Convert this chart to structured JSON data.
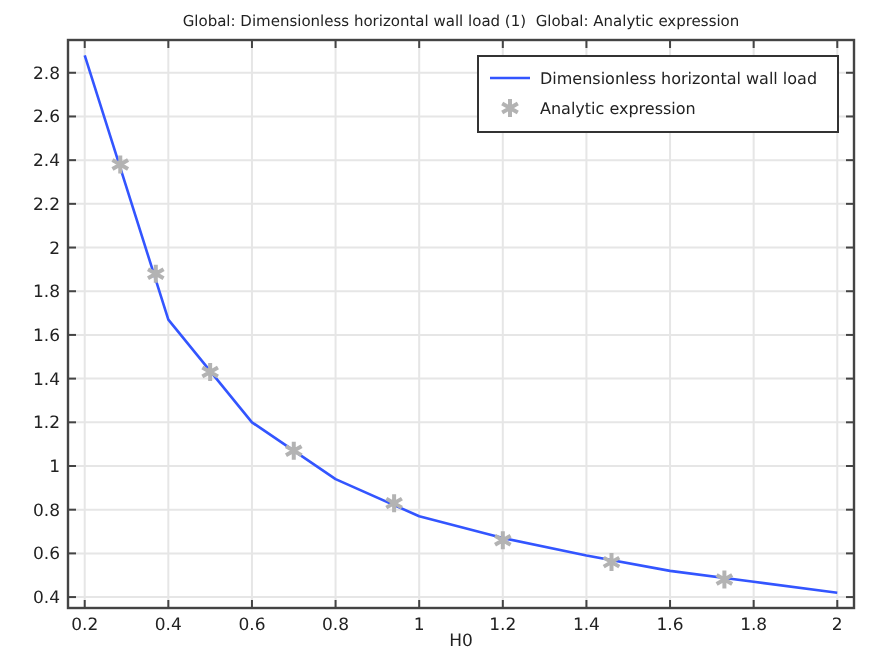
{
  "chart_data": {
    "type": "line",
    "title": "Global: Dimensionless horizontal wall load (1)  Global: Analytic expression",
    "xlabel": "H0",
    "xlim": [
      0.16,
      2.04
    ],
    "ylim": [
      0.35,
      2.95
    ],
    "xticks": [
      0.2,
      0.4,
      0.6,
      0.8,
      1,
      1.2,
      1.4,
      1.6,
      1.8,
      2
    ],
    "yticks": [
      0.4,
      0.6,
      0.8,
      1,
      1.2,
      1.4,
      1.6,
      1.8,
      2,
      2.2,
      2.4,
      2.6,
      2.8
    ],
    "grid": true,
    "legend": "top right",
    "series": [
      {
        "name": "Dimensionless horizontal wall load",
        "color": "#3355ff",
        "marker": "none",
        "x": [
          0.2,
          0.4,
          0.6,
          0.8,
          1,
          1.2,
          1.4,
          1.6,
          1.8,
          2
        ],
        "values": [
          2.88,
          1.67,
          1.2,
          0.94,
          0.77,
          0.67,
          0.59,
          0.52,
          0.47,
          0.42
        ]
      },
      {
        "name": "Analytic expression",
        "type": "scatter",
        "color": "#b3b3b3",
        "marker": "cross",
        "x": [
          0.285,
          0.37,
          0.5,
          0.7,
          0.94,
          1.2,
          1.46,
          1.73
        ],
        "values": [
          2.38,
          1.88,
          1.43,
          1.07,
          0.83,
          0.66,
          0.56,
          0.48
        ]
      }
    ]
  }
}
